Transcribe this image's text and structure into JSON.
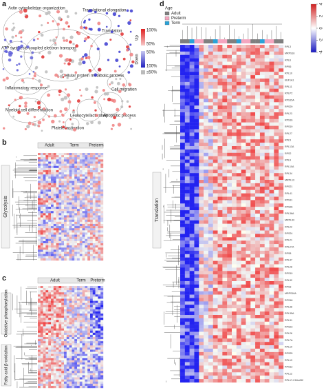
{
  "panels": {
    "a": {
      "label": "a",
      "clusters": [
        "Actin cytoskeleton organization",
        "Translational elongation",
        "Translation",
        "ATP synthesis coupled electron transport",
        "Inflammatory response",
        "Cellular protein metabolic process",
        "Cell migration",
        "Myeloid cell differentiation",
        "Leukocyte activation",
        "Apoptotic process",
        "Platelet activation"
      ],
      "legend": {
        "up_top": "100%",
        "up_bottom": "50%",
        "up": "Up",
        "down": "Down",
        "down_top": "50%",
        "down_bottom": "100%",
        "gray": "≤50%"
      }
    },
    "b": {
      "label": "b",
      "groups": [
        "Adult",
        "Term",
        "Preterm"
      ],
      "pathway": "Glycolysis"
    },
    "c": {
      "label": "c",
      "groups": [
        "Adult",
        "Term",
        "Preterm"
      ],
      "pathways": [
        "Oxidative phosphorylation",
        "Fatty acid β-oxidation"
      ]
    },
    "d": {
      "label": "d",
      "legend_title": "Age",
      "legend": [
        {
          "name": "Adult",
          "color": "#7f7f7f"
        },
        {
          "name": "Preterm",
          "color": "#f4a6bf"
        },
        {
          "name": "Term",
          "color": "#2aa3d8"
        }
      ],
      "pathway": "Translation",
      "colorbar_ticks": [
        4,
        2,
        0,
        -2,
        -4
      ],
      "genes": [
        "RPL3",
        "MRPS16",
        "RPL6",
        "RPS6",
        "RPL10",
        "EEF1A1",
        "RPL11",
        "RPLP2",
        "RPS15A",
        "RPS29",
        "RPL23",
        "RPS16",
        "RPS19",
        "RPL27",
        "RPL5",
        "RPL13A",
        "RPS2",
        "RPL9",
        "RPL10A",
        "RPL34",
        "MRPL13",
        "RPS21",
        "RPL41",
        "RPS11",
        "RPS26",
        "RPL36A",
        "MRPL33",
        "RPL22",
        "RPS24",
        "RPL21",
        "RPL27A",
        "RPS8",
        "RPL37",
        "RPL28",
        "RPS10",
        "RPL32",
        "RPS3",
        "MRPS18A",
        "RPS18",
        "RPL38",
        "RPL35A",
        "RPL31",
        "RPS23",
        "RPL26",
        "RPL7A",
        "RPL19",
        "RPS25",
        "RPL13",
        "RPS12",
        "RPL12",
        "RPL17-C18orf32"
      ]
    }
  }
}
